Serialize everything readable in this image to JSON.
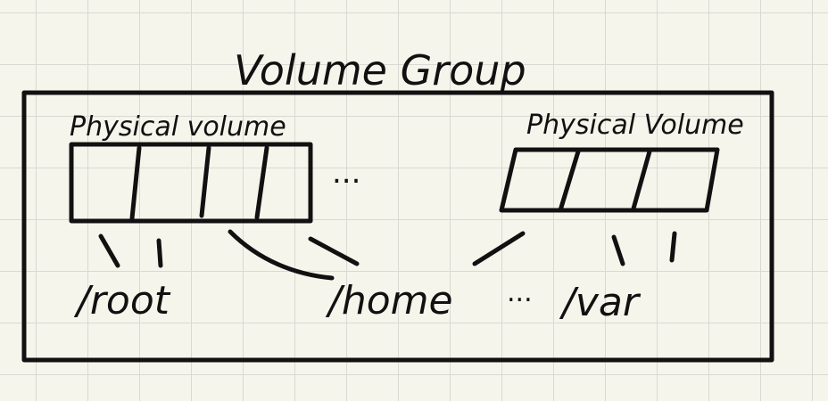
{
  "title": "Volume Group",
  "physical_volumes": [
    {
      "label": "Physical volume"
    },
    {
      "label": "Physical Volume"
    }
  ],
  "ellipsis_between_volumes": "...",
  "mount_points": [
    {
      "label": "/root"
    },
    {
      "label": "/home"
    },
    {
      "label": "/var"
    }
  ],
  "ellipsis_between_mounts": "..."
}
